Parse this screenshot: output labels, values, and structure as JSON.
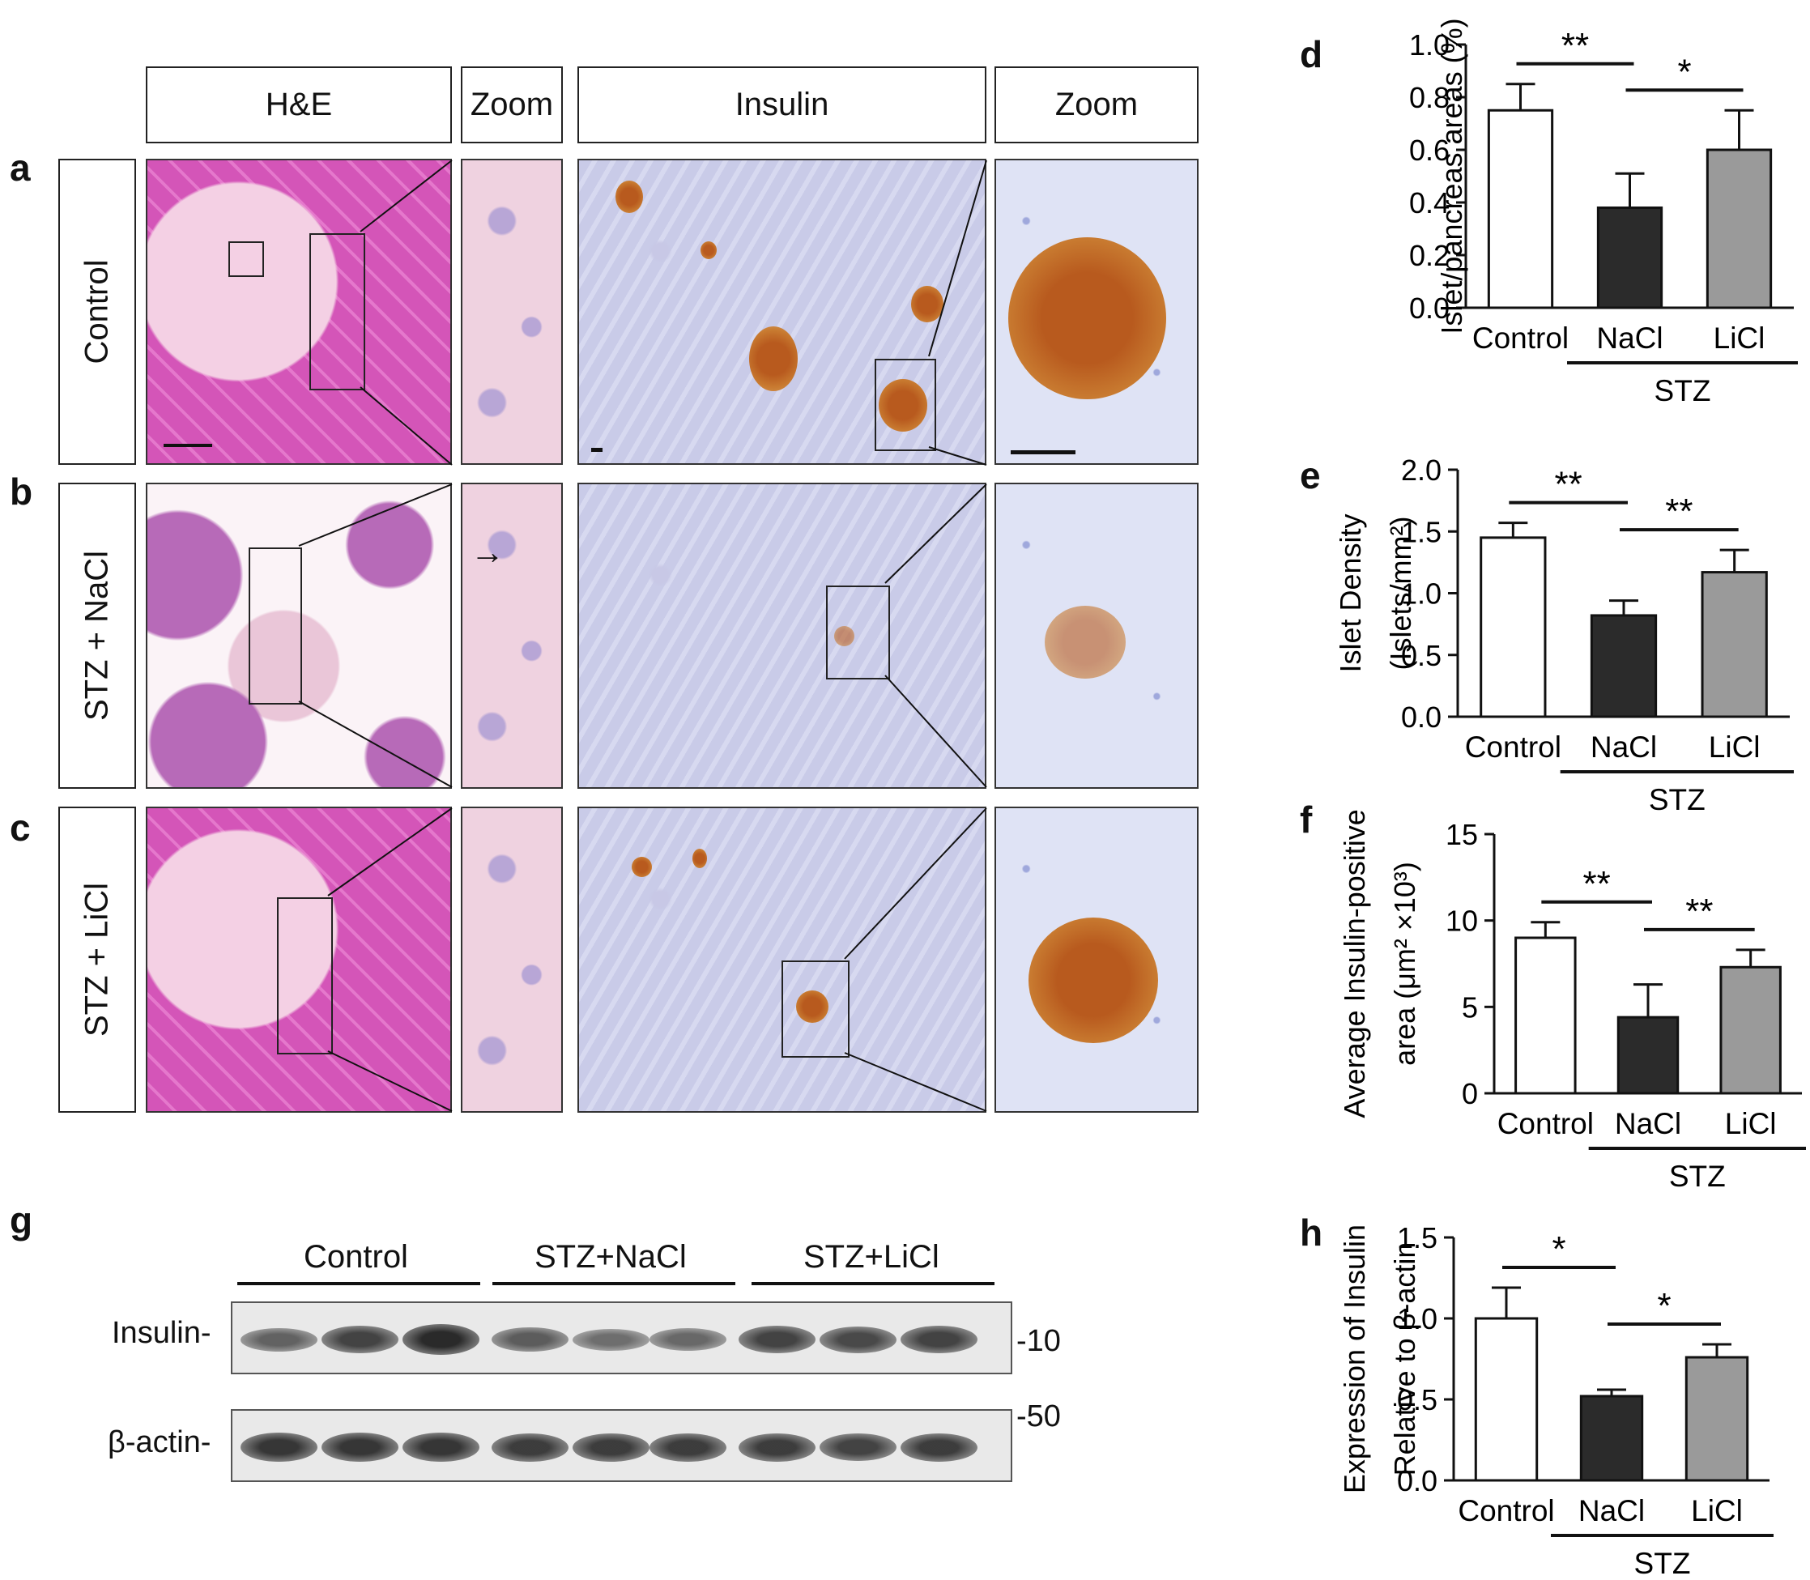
{
  "panel_letters": {
    "a": "a",
    "b": "b",
    "c": "c",
    "d": "d",
    "e": "e",
    "f": "f",
    "g": "g",
    "h": "h"
  },
  "headers": {
    "he": "H&E",
    "zoom1": "Zoom",
    "insulin": "Insulin",
    "zoom2": "Zoom"
  },
  "rows": [
    "Control",
    "STZ + NaCl",
    "STZ + LiCl"
  ],
  "blot": {
    "groups": [
      "Control",
      "STZ+NaCl",
      "STZ+LiCl"
    ],
    "rows": [
      "Insulin-",
      "β-actin-"
    ],
    "markers": [
      "-10",
      "-50"
    ],
    "insulin_intensity": [
      0.55,
      0.8,
      1.0,
      0.6,
      0.45,
      0.5,
      0.8,
      0.75,
      0.8
    ],
    "actin_intensity": [
      0.9,
      0.9,
      0.9,
      0.85,
      0.85,
      0.85,
      0.85,
      0.8,
      0.85
    ]
  },
  "chart_data": [
    {
      "id": "d",
      "type": "bar",
      "categories": [
        "Control",
        "NaCl",
        "LiCl"
      ],
      "values": [
        0.75,
        0.38,
        0.6
      ],
      "errors": [
        0.1,
        0.13,
        0.15
      ],
      "colors": [
        "#ffffff",
        "#2b2b2b",
        "#9a9a9a"
      ],
      "ylim": [
        0,
        1.0
      ],
      "yticks": [
        "0.0",
        "0.2",
        "0.4",
        "0.6",
        "0.8",
        "1.0"
      ],
      "ylabel": [
        "Islet/pancreas areas (%)"
      ],
      "group_label": "STZ",
      "sig": [
        {
          "from": 0,
          "to": 1,
          "text": "**"
        },
        {
          "from": 1,
          "to": 2,
          "text": "*"
        }
      ]
    },
    {
      "id": "e",
      "type": "bar",
      "categories": [
        "Control",
        "NaCl",
        "LiCl"
      ],
      "values": [
        1.45,
        0.82,
        1.17
      ],
      "errors": [
        0.12,
        0.12,
        0.18
      ],
      "colors": [
        "#ffffff",
        "#2b2b2b",
        "#9a9a9a"
      ],
      "ylim": [
        0,
        2.0
      ],
      "yticks": [
        "0.0",
        "0.5",
        "1.0",
        "1.5",
        "2.0"
      ],
      "ylabel": [
        "Islet Density",
        "(Islets/mm²)"
      ],
      "group_label": "STZ",
      "sig": [
        {
          "from": 0,
          "to": 1,
          "text": "**"
        },
        {
          "from": 1,
          "to": 2,
          "text": "**"
        }
      ]
    },
    {
      "id": "f",
      "type": "bar",
      "categories": [
        "Control",
        "NaCl",
        "LiCl"
      ],
      "values": [
        9.0,
        4.4,
        7.3
      ],
      "errors": [
        0.9,
        1.9,
        1.0
      ],
      "colors": [
        "#ffffff",
        "#2b2b2b",
        "#9a9a9a"
      ],
      "ylim": [
        0,
        15
      ],
      "yticks": [
        "0",
        "5",
        "10",
        "15"
      ],
      "ylabel": [
        "Average Insulin-positive",
        "area (μm² ×10³)"
      ],
      "group_label": "STZ",
      "sig": [
        {
          "from": 0,
          "to": 1,
          "text": "**"
        },
        {
          "from": 1,
          "to": 2,
          "text": "**"
        }
      ]
    },
    {
      "id": "h",
      "type": "bar",
      "categories": [
        "Control",
        "NaCl",
        "LiCl"
      ],
      "values": [
        1.0,
        0.52,
        0.76
      ],
      "errors": [
        0.19,
        0.04,
        0.08
      ],
      "colors": [
        "#ffffff",
        "#2b2b2b",
        "#9a9a9a"
      ],
      "ylim": [
        0,
        1.5
      ],
      "yticks": [
        "0.0",
        "0.5",
        "1.0",
        "1.5"
      ],
      "ylabel": [
        "Expression of Insulin",
        "Relative to β-actin"
      ],
      "group_label": "STZ",
      "sig": [
        {
          "from": 0,
          "to": 1,
          "text": "*"
        },
        {
          "from": 1,
          "to": 2,
          "text": "*"
        }
      ]
    }
  ]
}
